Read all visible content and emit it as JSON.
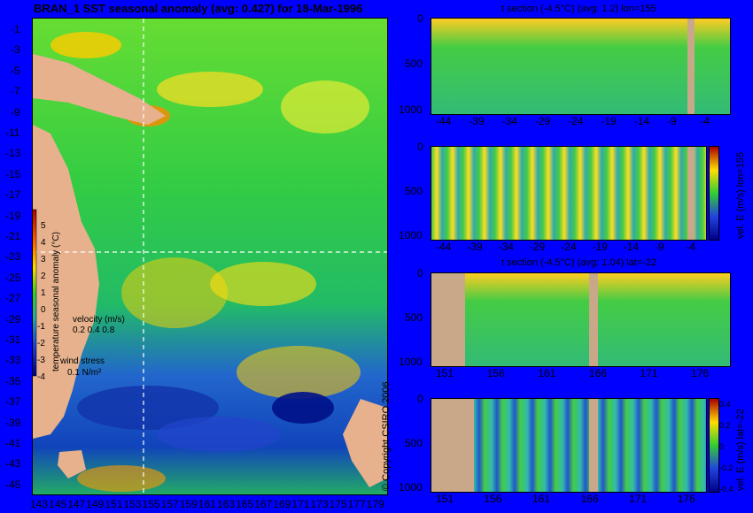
{
  "title": "BRAN_1 SST seasonal anomaly (avg: 0.427) for 18-Mar-1996",
  "map": {
    "y_ticks": [
      "-1",
      "-3",
      "-5",
      "-7",
      "-9",
      "-11",
      "-13",
      "-15",
      "-17",
      "-19",
      "-21",
      "-23",
      "-25",
      "-27",
      "-29",
      "-31",
      "-33",
      "-35",
      "-37",
      "-39",
      "-41",
      "-43",
      "-45"
    ],
    "x_ticks": [
      "143",
      "145",
      "147",
      "149",
      "151",
      "153",
      "155",
      "157",
      "159",
      "161",
      "163",
      "165",
      "167",
      "169",
      "171",
      "173",
      "175",
      "177",
      "179"
    ],
    "colorbar_label": "temperature seasonal anomaly (°C)",
    "colorbar_ticks": [
      "5",
      "4",
      "3",
      "2",
      "1",
      "0",
      "-1",
      "-2",
      "-3",
      "-4"
    ],
    "velocity_label": "velocity (m/s)",
    "velocity_scale": "0.2 0.4 0.8",
    "wind_label": "wind stress",
    "wind_scale": "0.1 N/m²"
  },
  "panels": [
    {
      "title": "t section (-4.5°C) (avg: 1.2) lon=155",
      "x_ticks": [
        "-44",
        "-39",
        "-34",
        "-29",
        "-24",
        "-19",
        "-14",
        "-9",
        "-4"
      ],
      "y_ticks": [
        "0",
        "500",
        "1000"
      ]
    },
    {
      "title": "",
      "x_ticks": [
        "-44",
        "-39",
        "-34",
        "-29",
        "-24",
        "-19",
        "-14",
        "-9",
        "-4"
      ],
      "y_ticks": [
        "0",
        "500",
        "1000"
      ],
      "cbar_label": "vel. E (m/s) lon=155"
    },
    {
      "title": "t section (-4.5°C) (avg: 1.04) lat=-22",
      "x_ticks": [
        "151",
        "156",
        "161",
        "166",
        "171",
        "176"
      ],
      "y_ticks": [
        "0",
        "500",
        "1000"
      ]
    },
    {
      "title": "",
      "x_ticks": [
        "151",
        "156",
        "161",
        "166",
        "171",
        "176"
      ],
      "y_ticks": [
        "0",
        "500",
        "1000"
      ],
      "cbar_label": "vel. E (m/s) lat=-22",
      "cbar_ticks": [
        "0.4",
        "0.2",
        "0",
        "-0.2",
        "-0.4"
      ]
    }
  ],
  "copyright": "© Copyright CSIRO 2006",
  "colors": {
    "background": "#0000ff",
    "land": "#e6b18c",
    "ocean_mid": "#22cc44",
    "warm": "#ffdd00",
    "hot": "#dd2200",
    "cold": "#0022aa"
  }
}
